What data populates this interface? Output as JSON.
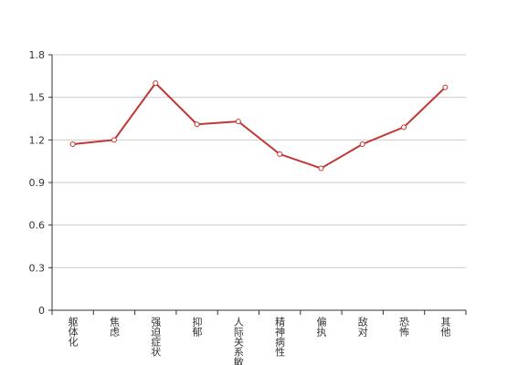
{
  "chart_data": {
    "type": "line",
    "categories": [
      "躯体化",
      "焦虑",
      "强迫症状",
      "抑郁",
      "人际关系敏感",
      "精神病性",
      "偏执",
      "敌对",
      "恐怖",
      "其他"
    ],
    "values": [
      1.17,
      1.2,
      1.6,
      1.31,
      1.33,
      1.1,
      1.0,
      1.17,
      1.29,
      1.57
    ],
    "color": "#c23531",
    "ylim": [
      0,
      1.8
    ],
    "yticks": [
      0,
      0.3,
      0.6,
      0.9,
      1.2,
      1.5,
      1.8
    ],
    "grid": true
  }
}
